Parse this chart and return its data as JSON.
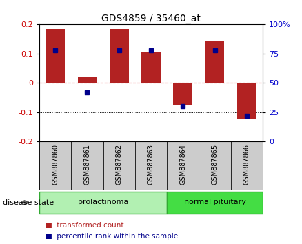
{
  "title": "GDS4859 / 35460_at",
  "samples": [
    "GSM887860",
    "GSM887861",
    "GSM887862",
    "GSM887863",
    "GSM887864",
    "GSM887865",
    "GSM887866"
  ],
  "transformed_count": [
    0.185,
    0.02,
    0.185,
    0.107,
    -0.075,
    0.145,
    -0.125
  ],
  "percentile_rank": [
    78,
    42,
    78,
    78,
    30,
    78,
    22
  ],
  "ylim_left": [
    -0.2,
    0.2
  ],
  "ylim_right": [
    0,
    100
  ],
  "yticks_left": [
    -0.2,
    -0.1,
    0,
    0.1,
    0.2
  ],
  "yticks_right": [
    0,
    25,
    50,
    75,
    100
  ],
  "bar_color": "#b22222",
  "dot_color": "#00008B",
  "hline_values": [
    -0.1,
    0.0,
    0.1
  ],
  "groups": [
    {
      "label": "prolactinoma",
      "samples_range": [
        0,
        3
      ],
      "facecolor": "#b2f0b2",
      "edgecolor": "#33aa33"
    },
    {
      "label": "normal pituitary",
      "samples_range": [
        4,
        6
      ],
      "facecolor": "#44dd44",
      "edgecolor": "#33aa33"
    }
  ],
  "disease_state_label": "disease state",
  "legend_items": [
    {
      "label": "transformed count",
      "color": "#b22222"
    },
    {
      "label": "percentile rank within the sample",
      "color": "#00008B"
    }
  ],
  "bar_width": 0.6,
  "sample_cell_color": "#cccccc",
  "tick_color_left": "#cc0000",
  "tick_color_right": "#0000cc",
  "title_fontsize": 10,
  "tick_fontsize": 8,
  "label_fontsize": 7,
  "group_fontsize": 8,
  "legend_fontsize": 7.5
}
